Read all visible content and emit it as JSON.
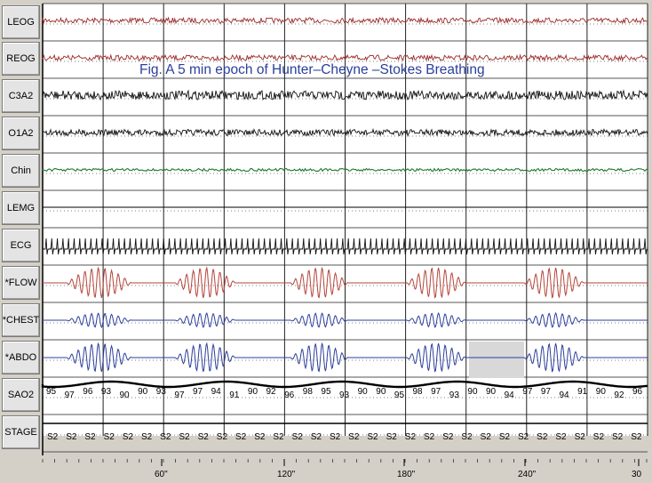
{
  "figure_title": "Fig. A 5 min epoch of Hunter–Cheyne –Stokes Breathing",
  "channels": [
    "LEOG",
    "REOG",
    "C3A2",
    "O1A2",
    "Chin",
    "LEMG",
    "ECG",
    "*FLOW",
    "*CHEST",
    "*ABDO",
    "SAO2",
    "STAGE"
  ],
  "sao2_values": [
    "95",
    "97",
    "96",
    "93",
    "90",
    "90",
    "93",
    "97",
    "97",
    "94",
    "91",
    "90",
    "92",
    "96",
    "98",
    "95",
    "93",
    "90",
    "90",
    "95",
    "98",
    "97",
    "93",
    "90",
    "90",
    "94",
    "97",
    "97",
    "94",
    "91",
    "90",
    "92",
    "96"
  ],
  "stage_values": [
    "S2",
    "S2",
    "S2",
    "S2",
    "S2",
    "S2",
    "S2",
    "S2",
    "S2",
    "S2",
    "S2",
    "S2",
    "S2",
    "S2",
    "S2",
    "S2",
    "S2",
    "S2",
    "S2",
    "S2",
    "S2",
    "S2",
    "S2",
    "S2",
    "S2",
    "S2",
    "S2",
    "S2",
    "S2",
    "S2",
    "S2",
    "S2"
  ],
  "time_ticks": [
    "60\"",
    "120\"",
    "180\"",
    "240\"",
    "30"
  ],
  "colors": {
    "eog": "#9e2a2a",
    "eeg": "#111111",
    "chin": "#1f7a2e",
    "flow": "#b5453b",
    "effort": "#2e3f9a",
    "title": "#2b3f9a"
  }
}
